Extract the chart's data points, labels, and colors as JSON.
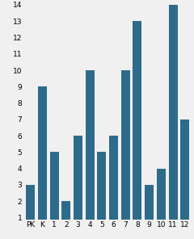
{
  "categories": [
    "PK",
    "K",
    "1",
    "2",
    "3",
    "4",
    "5",
    "6",
    "7",
    "8",
    "9",
    "10",
    "11",
    "12"
  ],
  "values": [
    3,
    9,
    5,
    2,
    6,
    10,
    5,
    6,
    10,
    13,
    3,
    4,
    14,
    7
  ],
  "bar_color": "#2e6b8a",
  "ylim_min": 1,
  "ylim_max": 14,
  "yticks": [
    1,
    2,
    3,
    4,
    5,
    6,
    7,
    8,
    9,
    10,
    11,
    12,
    13,
    14
  ],
  "background_color": "#f0f0f0",
  "tick_fontsize": 6.5,
  "bar_width": 0.75,
  "figsize": [
    2.4,
    2.96
  ],
  "dpi": 100
}
